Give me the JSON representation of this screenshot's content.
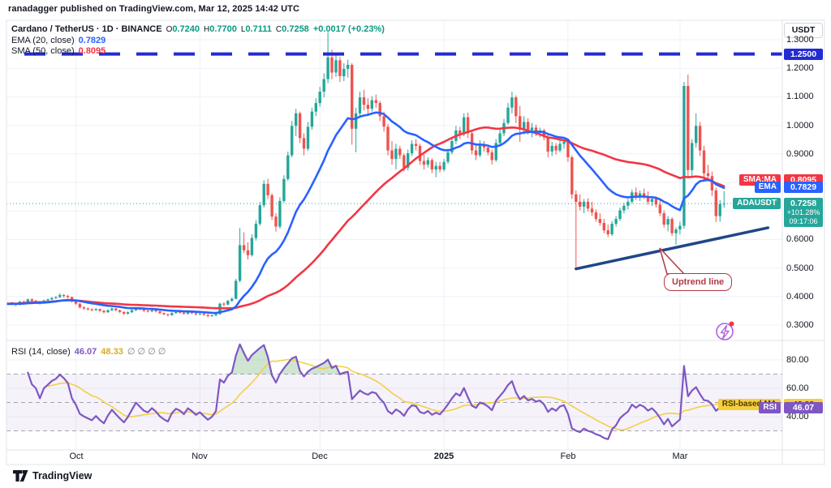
{
  "header": {
    "published_line": "ranadagger published on TradingView.com, Mar 12, 2025 14:42 UTC"
  },
  "legend": {
    "symbol_line": "Cardano / TetherUS · 1D · BINANCE",
    "ohlc": [
      {
        "k": "O",
        "v": "0.7240"
      },
      {
        "k": "H",
        "v": "0.7700"
      },
      {
        "k": "L",
        "v": "0.7111"
      },
      {
        "k": "C",
        "v": "0.7258"
      }
    ],
    "change": "+0.0017 (+0.23%)",
    "ema_label": "EMA (20, close)",
    "ema_value": "0.7829",
    "sma_label": "SMA (50, close)",
    "sma_value": "0.8095"
  },
  "rsi_legend": {
    "label": "RSI (14, close)",
    "rsi_value": "46.07",
    "ma_value": "48.33",
    "empties": "∅ ∅ ∅ ∅"
  },
  "axis": {
    "unit": "USDT",
    "price_ticks": [
      "1.3000",
      "1.2000",
      "1.1000",
      "1.0000",
      "0.9000",
      "0.8000",
      "0.7000",
      "0.6000",
      "0.5000",
      "0.4000",
      "0.3000"
    ],
    "rsi_ticks": [
      "80.00",
      "60.00",
      "40.00"
    ],
    "time_labels": [
      {
        "label": "Oct",
        "index": 17
      },
      {
        "label": "Nov",
        "index": 48
      },
      {
        "label": "Dec",
        "index": 78
      },
      {
        "label": "2025",
        "index": 109,
        "bold": true
      },
      {
        "label": "Feb",
        "index": 140
      },
      {
        "label": "Mar",
        "index": 168
      }
    ]
  },
  "badges": {
    "price_scale": [
      {
        "name": "level",
        "value": "1.2500",
        "bg": "#232bd3",
        "price": 1.25
      },
      {
        "name": "sma",
        "label": "SMA:MA",
        "value": "0.8095",
        "bg": "#f23645",
        "price": 0.8095
      },
      {
        "name": "ema",
        "label": "EMA",
        "value": "0.7829",
        "bg": "#2962ff",
        "price": 0.7829
      }
    ],
    "symbol_badge": {
      "label": "ADAUSDT",
      "value": "0.7258",
      "sub1": "+101.28%",
      "sub2": "09:17:06",
      "bg": "#26a69a",
      "price": 0.7258
    },
    "rsi_scale": [
      {
        "name": "rsi-ma",
        "label": "RSI-based MA",
        "value": "48.33",
        "bg": "#f5cf3d",
        "fg": "#4a3b00",
        "rsi": 48.33
      },
      {
        "name": "rsi",
        "label": "RSI",
        "value": "46.07",
        "bg": "#7e57c2",
        "fg": "#ffffff",
        "rsi": 46.07
      }
    ]
  },
  "annotations": {
    "uptrend_label": "Uptrend line"
  },
  "footer": {
    "brand": "TradingView"
  },
  "colors": {
    "up": "#26a69a",
    "down": "#ef5350",
    "ema": "#2962ff",
    "sma": "#f23645",
    "rsi": "#7e57c2",
    "rsi_ma": "#f3cf47",
    "level_blue": "#232bd3",
    "trend_navy": "#1f4788",
    "grid": "#eef1f8",
    "frame": "#e0e3eb",
    "band": "rgba(126,87,194,0.08)",
    "band_dash": "#9598a1",
    "price_line": "#26a69a",
    "rsi_fill": "rgba(96,169,107,0.30)"
  },
  "chart_data": {
    "type": "candlestick",
    "title": "Cardano / TetherUS · 1D · BINANCE",
    "symbol": "ADAUSDT",
    "interval": "1D",
    "start_date": "2024-09-14",
    "end_date": "2025-03-12",
    "x_axis": {
      "labels": [
        "Oct",
        "Nov",
        "Dec",
        "2025",
        "Feb",
        "Mar"
      ],
      "month_start_indices": [
        17,
        48,
        78,
        109,
        140,
        168
      ]
    },
    "y_axis": {
      "range": [
        0.28,
        1.35
      ],
      "ticks": [
        1.3,
        1.2,
        1.1,
        1.0,
        0.9,
        0.8,
        0.7,
        0.6,
        0.5,
        0.4,
        0.3
      ],
      "unit": "USDT"
    },
    "rsi_axis": {
      "ticks": [
        80,
        60,
        40
      ],
      "levels": [
        70,
        50,
        30
      ]
    },
    "overlays": [
      {
        "name": "EMA",
        "period": 20,
        "last": 0.7829
      },
      {
        "name": "SMA",
        "period": 50,
        "last": 0.8095
      }
    ],
    "rsi": {
      "period": 14,
      "last": 46.07,
      "ma_period": 14,
      "ma_last": 48.33
    },
    "level_line": {
      "price": 1.25,
      "style": "dashed"
    },
    "current_price_line": {
      "price": 0.7258
    },
    "trend_line": {
      "x1_index": 142,
      "price1": 0.497,
      "x2_index": 190,
      "price2": 0.641,
      "label": "Uptrend line"
    },
    "ohlc_last": {
      "o": 0.724,
      "h": 0.77,
      "l": 0.7111,
      "c": 0.7258,
      "change": 0.0017,
      "change_pct": 0.23
    },
    "candles": [
      [
        0.376,
        0.381,
        0.371,
        0.374
      ],
      [
        0.374,
        0.38,
        0.37,
        0.378
      ],
      [
        0.378,
        0.379,
        0.366,
        0.371
      ],
      [
        0.371,
        0.385,
        0.369,
        0.382
      ],
      [
        0.382,
        0.386,
        0.375,
        0.378
      ],
      [
        0.378,
        0.393,
        0.376,
        0.39
      ],
      [
        0.39,
        0.394,
        0.381,
        0.385
      ],
      [
        0.385,
        0.388,
        0.379,
        0.383
      ],
      [
        0.383,
        0.385,
        0.372,
        0.377
      ],
      [
        0.377,
        0.389,
        0.375,
        0.386
      ],
      [
        0.386,
        0.393,
        0.383,
        0.39
      ],
      [
        0.39,
        0.398,
        0.387,
        0.395
      ],
      [
        0.395,
        0.401,
        0.391,
        0.398
      ],
      [
        0.398,
        0.412,
        0.395,
        0.405
      ],
      [
        0.405,
        0.409,
        0.396,
        0.402
      ],
      [
        0.402,
        0.406,
        0.392,
        0.398
      ],
      [
        0.398,
        0.4,
        0.379,
        0.383
      ],
      [
        0.383,
        0.384,
        0.37,
        0.375
      ],
      [
        0.375,
        0.377,
        0.358,
        0.362
      ],
      [
        0.362,
        0.366,
        0.353,
        0.358
      ],
      [
        0.358,
        0.362,
        0.351,
        0.355
      ],
      [
        0.355,
        0.359,
        0.348,
        0.352
      ],
      [
        0.352,
        0.36,
        0.35,
        0.356
      ],
      [
        0.356,
        0.358,
        0.346,
        0.35
      ],
      [
        0.35,
        0.353,
        0.341,
        0.345
      ],
      [
        0.345,
        0.355,
        0.343,
        0.352
      ],
      [
        0.352,
        0.361,
        0.349,
        0.358
      ],
      [
        0.358,
        0.36,
        0.348,
        0.352
      ],
      [
        0.352,
        0.354,
        0.342,
        0.346
      ],
      [
        0.346,
        0.348,
        0.335,
        0.34
      ],
      [
        0.34,
        0.348,
        0.337,
        0.345
      ],
      [
        0.345,
        0.356,
        0.342,
        0.352
      ],
      [
        0.352,
        0.363,
        0.349,
        0.36
      ],
      [
        0.36,
        0.362,
        0.351,
        0.355
      ],
      [
        0.355,
        0.357,
        0.346,
        0.35
      ],
      [
        0.35,
        0.353,
        0.344,
        0.348
      ],
      [
        0.348,
        0.356,
        0.345,
        0.352
      ],
      [
        0.352,
        0.354,
        0.344,
        0.348
      ],
      [
        0.348,
        0.35,
        0.338,
        0.342
      ],
      [
        0.342,
        0.345,
        0.334,
        0.338
      ],
      [
        0.338,
        0.34,
        0.33,
        0.335
      ],
      [
        0.335,
        0.345,
        0.332,
        0.342
      ],
      [
        0.342,
        0.349,
        0.339,
        0.346
      ],
      [
        0.346,
        0.348,
        0.34,
        0.344
      ],
      [
        0.344,
        0.346,
        0.336,
        0.34
      ],
      [
        0.34,
        0.348,
        0.337,
        0.345
      ],
      [
        0.345,
        0.347,
        0.338,
        0.342
      ],
      [
        0.342,
        0.344,
        0.333,
        0.338
      ],
      [
        0.338,
        0.343,
        0.335,
        0.34
      ],
      [
        0.34,
        0.342,
        0.332,
        0.336
      ],
      [
        0.336,
        0.338,
        0.327,
        0.332
      ],
      [
        0.332,
        0.337,
        0.329,
        0.334
      ],
      [
        0.334,
        0.341,
        0.331,
        0.338
      ],
      [
        0.338,
        0.378,
        0.336,
        0.375
      ],
      [
        0.375,
        0.38,
        0.365,
        0.372
      ],
      [
        0.372,
        0.388,
        0.369,
        0.385
      ],
      [
        0.385,
        0.397,
        0.381,
        0.392
      ],
      [
        0.392,
        0.462,
        0.39,
        0.455
      ],
      [
        0.455,
        0.64,
        0.45,
        0.58
      ],
      [
        0.58,
        0.625,
        0.552,
        0.562
      ],
      [
        0.562,
        0.59,
        0.53,
        0.545
      ],
      [
        0.545,
        0.618,
        0.54,
        0.605
      ],
      [
        0.605,
        0.668,
        0.596,
        0.655
      ],
      [
        0.655,
        0.732,
        0.648,
        0.72
      ],
      [
        0.72,
        0.808,
        0.712,
        0.795
      ],
      [
        0.795,
        0.812,
        0.742,
        0.755
      ],
      [
        0.755,
        0.762,
        0.668,
        0.68
      ],
      [
        0.68,
        0.692,
        0.628,
        0.645
      ],
      [
        0.645,
        0.748,
        0.638,
        0.735
      ],
      [
        0.735,
        0.825,
        0.728,
        0.812
      ],
      [
        0.812,
        0.908,
        0.805,
        0.895
      ],
      [
        0.895,
        1.015,
        0.888,
        0.998
      ],
      [
        0.998,
        1.058,
        0.962,
        1.042
      ],
      [
        1.042,
        1.048,
        0.938,
        0.955
      ],
      [
        0.955,
        0.972,
        0.895,
        0.918
      ],
      [
        0.918,
        1.012,
        0.91,
        0.995
      ],
      [
        0.995,
        1.062,
        0.985,
        1.048
      ],
      [
        1.048,
        1.095,
        1.032,
        1.078
      ],
      [
        1.078,
        1.135,
        1.065,
        1.118
      ],
      [
        1.118,
        1.182,
        1.098,
        1.162
      ],
      [
        1.162,
        1.326,
        1.148,
        1.238
      ],
      [
        1.238,
        1.265,
        1.162,
        1.185
      ],
      [
        1.185,
        1.248,
        1.17,
        1.228
      ],
      [
        1.228,
        1.24,
        1.152,
        1.172
      ],
      [
        1.172,
        1.218,
        1.155,
        1.198
      ],
      [
        1.198,
        1.23,
        1.168,
        1.212
      ],
      [
        1.212,
        1.218,
        0.932,
        0.988
      ],
      [
        0.988,
        1.062,
        0.905,
        1.042
      ],
      [
        1.042,
        1.118,
        1.028,
        1.098
      ],
      [
        1.098,
        1.125,
        1.052,
        1.072
      ],
      [
        1.072,
        1.095,
        1.038,
        1.058
      ],
      [
        1.058,
        1.102,
        1.048,
        1.088
      ],
      [
        1.088,
        1.108,
        1.062,
        1.078
      ],
      [
        1.078,
        1.085,
        1.015,
        1.032
      ],
      [
        1.032,
        1.048,
        0.978,
        0.995
      ],
      [
        0.995,
        1.005,
        0.895,
        0.912
      ],
      [
        0.912,
        0.945,
        0.862,
        0.882
      ],
      [
        0.882,
        0.935,
        0.845,
        0.918
      ],
      [
        0.918,
        0.928,
        0.882,
        0.895
      ],
      [
        0.895,
        0.902,
        0.838,
        0.852
      ],
      [
        0.852,
        0.915,
        0.842,
        0.902
      ],
      [
        0.902,
        0.948,
        0.892,
        0.935
      ],
      [
        0.935,
        0.952,
        0.912,
        0.928
      ],
      [
        0.928,
        0.935,
        0.862,
        0.875
      ],
      [
        0.875,
        0.898,
        0.845,
        0.862
      ],
      [
        0.862,
        0.888,
        0.852,
        0.878
      ],
      [
        0.878,
        0.885,
        0.832,
        0.845
      ],
      [
        0.845,
        0.872,
        0.818,
        0.858
      ],
      [
        0.858,
        0.872,
        0.835,
        0.845
      ],
      [
        0.845,
        0.882,
        0.838,
        0.872
      ],
      [
        0.872,
        0.918,
        0.865,
        0.905
      ],
      [
        0.905,
        0.958,
        0.898,
        0.945
      ],
      [
        0.945,
        0.998,
        0.935,
        0.982
      ],
      [
        0.982,
        0.995,
        0.952,
        0.968
      ],
      [
        0.968,
        1.042,
        0.962,
        1.028
      ],
      [
        1.028,
        1.045,
        0.955,
        0.972
      ],
      [
        0.972,
        0.982,
        0.898,
        0.912
      ],
      [
        0.912,
        0.935,
        0.878,
        0.895
      ],
      [
        0.895,
        0.948,
        0.888,
        0.932
      ],
      [
        0.932,
        0.945,
        0.908,
        0.922
      ],
      [
        0.922,
        0.932,
        0.895,
        0.905
      ],
      [
        0.905,
        0.915,
        0.862,
        0.878
      ],
      [
        0.878,
        0.952,
        0.872,
        0.938
      ],
      [
        0.938,
        0.985,
        0.928,
        0.972
      ],
      [
        0.972,
        1.022,
        0.962,
        1.008
      ],
      [
        1.008,
        1.078,
        1.002,
        1.062
      ],
      [
        1.062,
        1.118,
        1.042,
        1.098
      ],
      [
        1.098,
        1.105,
        1.008,
        1.032
      ],
      [
        1.032,
        1.068,
        0.942,
        0.985
      ],
      [
        0.985,
        1.032,
        0.968,
        1.012
      ],
      [
        1.012,
        1.025,
        0.968,
        0.982
      ],
      [
        0.982,
        1.008,
        0.958,
        0.992
      ],
      [
        0.992,
        1.002,
        0.962,
        0.975
      ],
      [
        0.975,
        0.992,
        0.958,
        0.982
      ],
      [
        0.982,
        0.988,
        0.948,
        0.958
      ],
      [
        0.958,
        0.965,
        0.888,
        0.908
      ],
      [
        0.908,
        0.942,
        0.892,
        0.928
      ],
      [
        0.928,
        0.938,
        0.898,
        0.912
      ],
      [
        0.912,
        0.948,
        0.905,
        0.935
      ],
      [
        0.935,
        0.952,
        0.918,
        0.942
      ],
      [
        0.942,
        0.952,
        0.872,
        0.888
      ],
      [
        0.888,
        0.895,
        0.742,
        0.758
      ],
      [
        0.758,
        0.772,
        0.502,
        0.732
      ],
      [
        0.732,
        0.758,
        0.702,
        0.715
      ],
      [
        0.715,
        0.742,
        0.692,
        0.732
      ],
      [
        0.732,
        0.745,
        0.698,
        0.708
      ],
      [
        0.708,
        0.732,
        0.682,
        0.695
      ],
      [
        0.695,
        0.705,
        0.662,
        0.672
      ],
      [
        0.672,
        0.692,
        0.648,
        0.658
      ],
      [
        0.658,
        0.672,
        0.622,
        0.632
      ],
      [
        0.632,
        0.652,
        0.608,
        0.618
      ],
      [
        0.618,
        0.665,
        0.612,
        0.655
      ],
      [
        0.655,
        0.682,
        0.645,
        0.672
      ],
      [
        0.672,
        0.712,
        0.665,
        0.702
      ],
      [
        0.702,
        0.728,
        0.692,
        0.718
      ],
      [
        0.718,
        0.742,
        0.705,
        0.732
      ],
      [
        0.732,
        0.775,
        0.725,
        0.765
      ],
      [
        0.765,
        0.782,
        0.738,
        0.748
      ],
      [
        0.748,
        0.772,
        0.735,
        0.762
      ],
      [
        0.762,
        0.778,
        0.742,
        0.752
      ],
      [
        0.752,
        0.768,
        0.722,
        0.732
      ],
      [
        0.732,
        0.748,
        0.718,
        0.742
      ],
      [
        0.742,
        0.752,
        0.712,
        0.722
      ],
      [
        0.722,
        0.738,
        0.682,
        0.692
      ],
      [
        0.692,
        0.702,
        0.642,
        0.652
      ],
      [
        0.652,
        0.682,
        0.628,
        0.672
      ],
      [
        0.672,
        0.678,
        0.612,
        0.622
      ],
      [
        0.622,
        0.642,
        0.582,
        0.635
      ],
      [
        0.635,
        0.662,
        0.618,
        0.648
      ],
      [
        0.648,
        1.152,
        0.638,
        1.138
      ],
      [
        1.138,
        1.178,
        0.818,
        0.843
      ],
      [
        0.843,
        0.952,
        0.822,
        0.938
      ],
      [
        0.938,
        1.042,
        0.922,
        0.998
      ],
      [
        0.998,
        1.012,
        0.892,
        0.912
      ],
      [
        0.912,
        0.928,
        0.802,
        0.832
      ],
      [
        0.832,
        0.862,
        0.808,
        0.822
      ],
      [
        0.822,
        0.838,
        0.752,
        0.772
      ],
      [
        0.772,
        0.782,
        0.662,
        0.682
      ],
      [
        0.682,
        0.738,
        0.662,
        0.724
      ],
      [
        0.724,
        0.77,
        0.7111,
        0.7258
      ]
    ]
  }
}
